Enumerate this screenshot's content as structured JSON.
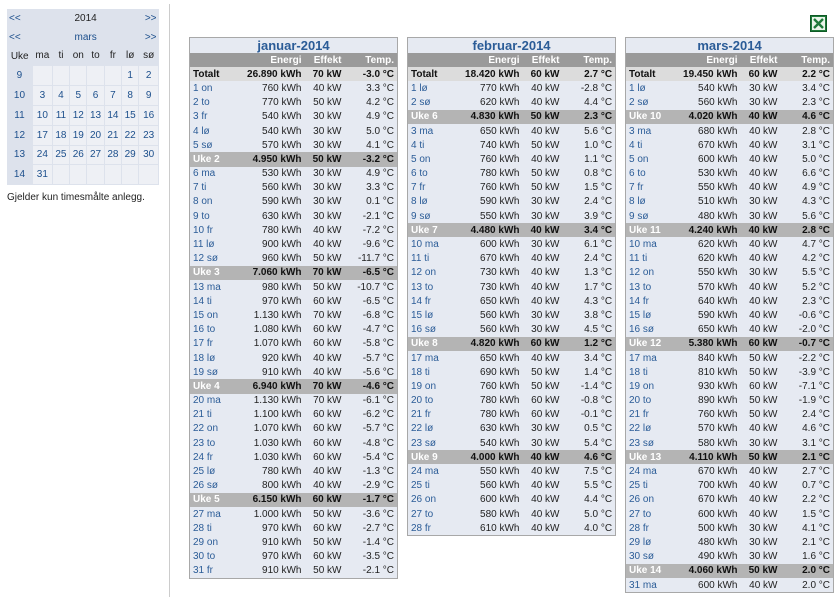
{
  "calendar": {
    "prev_year": "<<",
    "year": "2014",
    "next_year": ">>",
    "prev_month": "<<",
    "month": "mars",
    "next_month": ">>",
    "headers": [
      "Uke",
      "ma",
      "ti",
      "on",
      "to",
      "fr",
      "lø",
      "sø"
    ],
    "weeks": [
      {
        "week": "9",
        "days": [
          null,
          null,
          null,
          null,
          null,
          "1",
          "2"
        ]
      },
      {
        "week": "10",
        "days": [
          "3",
          "4",
          "5",
          "6",
          "7",
          "8",
          "9"
        ]
      },
      {
        "week": "11",
        "days": [
          "10",
          "11",
          "12",
          "13",
          "14",
          "15",
          "16"
        ]
      },
      {
        "week": "12",
        "days": [
          "17",
          "18",
          "19",
          "20",
          "21",
          "22",
          "23"
        ]
      },
      {
        "week": "13",
        "days": [
          "24",
          "25",
          "26",
          "27",
          "28",
          "29",
          "30"
        ]
      },
      {
        "week": "14",
        "days": [
          "31",
          null,
          null,
          null,
          null,
          null,
          null
        ]
      }
    ]
  },
  "note": "Gjelder kun timesmålte anlegg.",
  "columns": [
    "Energi",
    "Effekt",
    "Temp."
  ],
  "months": [
    {
      "title": "januar-2014",
      "total": [
        "Totalt",
        "26.890 kWh",
        "70 kW",
        "-3.0 °C"
      ],
      "sections": [
        {
          "days": [
            [
              "1 on",
              "760 kWh",
              "40 kW",
              "3.3 °C"
            ],
            [
              "2 to",
              "770 kWh",
              "50 kW",
              "4.2 °C"
            ],
            [
              "3 fr",
              "540 kWh",
              "30 kW",
              "4.9 °C"
            ],
            [
              "4 lø",
              "540 kWh",
              "30 kW",
              "5.0 °C"
            ],
            [
              "5 sø",
              "570 kWh",
              "30 kW",
              "4.1 °C"
            ]
          ]
        },
        {
          "week": [
            "Uke 2",
            "4.950 kWh",
            "50 kW",
            "-3.2 °C"
          ],
          "days": [
            [
              "6 ma",
              "530 kWh",
              "30 kW",
              "4.9 °C"
            ],
            [
              "7 ti",
              "560 kWh",
              "30 kW",
              "3.3 °C"
            ],
            [
              "8 on",
              "590 kWh",
              "30 kW",
              "0.1 °C"
            ],
            [
              "9 to",
              "630 kWh",
              "30 kW",
              "-2.1 °C"
            ],
            [
              "10 fr",
              "780 kWh",
              "40 kW",
              "-7.2 °C"
            ],
            [
              "11 lø",
              "900 kWh",
              "40 kW",
              "-9.6 °C"
            ],
            [
              "12 sø",
              "960 kWh",
              "50 kW",
              "-11.7 °C"
            ]
          ]
        },
        {
          "week": [
            "Uke 3",
            "7.060 kWh",
            "70 kW",
            "-6.5 °C"
          ],
          "days": [
            [
              "13 ma",
              "980 kWh",
              "50 kW",
              "-10.7 °C"
            ],
            [
              "14 ti",
              "970 kWh",
              "60 kW",
              "-6.5 °C"
            ],
            [
              "15 on",
              "1.130 kWh",
              "70 kW",
              "-6.8 °C"
            ],
            [
              "16 to",
              "1.080 kWh",
              "60 kW",
              "-4.7 °C"
            ],
            [
              "17 fr",
              "1.070 kWh",
              "60 kW",
              "-5.8 °C"
            ],
            [
              "18 lø",
              "920 kWh",
              "40 kW",
              "-5.7 °C"
            ],
            [
              "19 sø",
              "910 kWh",
              "40 kW",
              "-5.6 °C"
            ]
          ]
        },
        {
          "week": [
            "Uke 4",
            "6.940 kWh",
            "70 kW",
            "-4.6 °C"
          ],
          "days": [
            [
              "20 ma",
              "1.130 kWh",
              "70 kW",
              "-6.1 °C"
            ],
            [
              "21 ti",
              "1.100 kWh",
              "60 kW",
              "-6.2 °C"
            ],
            [
              "22 on",
              "1.070 kWh",
              "60 kW",
              "-5.7 °C"
            ],
            [
              "23 to",
              "1.030 kWh",
              "60 kW",
              "-4.8 °C"
            ],
            [
              "24 fr",
              "1.030 kWh",
              "60 kW",
              "-5.4 °C"
            ],
            [
              "25 lø",
              "780 kWh",
              "40 kW",
              "-1.3 °C"
            ],
            [
              "26 sø",
              "800 kWh",
              "40 kW",
              "-2.9 °C"
            ]
          ]
        },
        {
          "week": [
            "Uke 5",
            "6.150 kWh",
            "60 kW",
            "-1.7 °C"
          ],
          "days": [
            [
              "27 ma",
              "1.000 kWh",
              "50 kW",
              "-3.6 °C"
            ],
            [
              "28 ti",
              "970 kWh",
              "60 kW",
              "-2.7 °C"
            ],
            [
              "29 on",
              "910 kWh",
              "50 kW",
              "-1.4 °C"
            ],
            [
              "30 to",
              "970 kWh",
              "60 kW",
              "-3.5 °C"
            ],
            [
              "31 fr",
              "910 kWh",
              "50 kW",
              "-2.1 °C"
            ]
          ]
        }
      ]
    },
    {
      "title": "februar-2014",
      "total": [
        "Totalt",
        "18.420 kWh",
        "60 kW",
        "2.7 °C"
      ],
      "sections": [
        {
          "days": [
            [
              "1 lø",
              "770 kWh",
              "40 kW",
              "-2.8 °C"
            ],
            [
              "2 sø",
              "620 kWh",
              "40 kW",
              "4.4 °C"
            ]
          ]
        },
        {
          "week": [
            "Uke 6",
            "4.830 kWh",
            "50 kW",
            "2.3 °C"
          ],
          "days": [
            [
              "3 ma",
              "650 kWh",
              "40 kW",
              "5.6 °C"
            ],
            [
              "4 ti",
              "740 kWh",
              "50 kW",
              "1.0 °C"
            ],
            [
              "5 on",
              "760 kWh",
              "40 kW",
              "1.1 °C"
            ],
            [
              "6 to",
              "780 kWh",
              "50 kW",
              "0.8 °C"
            ],
            [
              "7 fr",
              "760 kWh",
              "50 kW",
              "1.5 °C"
            ],
            [
              "8 lø",
              "590 kWh",
              "30 kW",
              "2.4 °C"
            ],
            [
              "9 sø",
              "550 kWh",
              "30 kW",
              "3.9 °C"
            ]
          ]
        },
        {
          "week": [
            "Uke 7",
            "4.480 kWh",
            "40 kW",
            "3.4 °C"
          ],
          "days": [
            [
              "10 ma",
              "600 kWh",
              "30 kW",
              "6.1 °C"
            ],
            [
              "11 ti",
              "670 kWh",
              "40 kW",
              "2.4 °C"
            ],
            [
              "12 on",
              "730 kWh",
              "40 kW",
              "1.3 °C"
            ],
            [
              "13 to",
              "730 kWh",
              "40 kW",
              "1.7 °C"
            ],
            [
              "14 fr",
              "650 kWh",
              "40 kW",
              "4.3 °C"
            ],
            [
              "15 lø",
              "560 kWh",
              "30 kW",
              "3.8 °C"
            ],
            [
              "16 sø",
              "560 kWh",
              "30 kW",
              "4.5 °C"
            ]
          ]
        },
        {
          "week": [
            "Uke 8",
            "4.820 kWh",
            "60 kW",
            "1.2 °C"
          ],
          "days": [
            [
              "17 ma",
              "650 kWh",
              "40 kW",
              "3.4 °C"
            ],
            [
              "18 ti",
              "690 kWh",
              "50 kW",
              "1.4 °C"
            ],
            [
              "19 on",
              "760 kWh",
              "50 kW",
              "-1.4 °C"
            ],
            [
              "20 to",
              "780 kWh",
              "60 kW",
              "-0.8 °C"
            ],
            [
              "21 fr",
              "780 kWh",
              "60 kW",
              "-0.1 °C"
            ],
            [
              "22 lø",
              "630 kWh",
              "30 kW",
              "0.5 °C"
            ],
            [
              "23 sø",
              "540 kWh",
              "30 kW",
              "5.4 °C"
            ]
          ]
        },
        {
          "week": [
            "Uke 9",
            "4.000 kWh",
            "40 kW",
            "4.6 °C"
          ],
          "days": [
            [
              "24 ma",
              "550 kWh",
              "40 kW",
              "7.5 °C"
            ],
            [
              "25 ti",
              "560 kWh",
              "40 kW",
              "5.5 °C"
            ],
            [
              "26 on",
              "600 kWh",
              "40 kW",
              "4.4 °C"
            ],
            [
              "27 to",
              "580 kWh",
              "40 kW",
              "5.0 °C"
            ],
            [
              "28 fr",
              "610 kWh",
              "40 kW",
              "4.0 °C"
            ]
          ]
        }
      ]
    },
    {
      "title": "mars-2014",
      "total": [
        "Totalt",
        "19.450 kWh",
        "60 kW",
        "2.2 °C"
      ],
      "sections": [
        {
          "days": [
            [
              "1 lø",
              "540 kWh",
              "30 kW",
              "3.4 °C"
            ],
            [
              "2 sø",
              "560 kWh",
              "30 kW",
              "2.3 °C"
            ]
          ]
        },
        {
          "week": [
            "Uke 10",
            "4.020 kWh",
            "40 kW",
            "4.6 °C"
          ],
          "days": [
            [
              "3 ma",
              "680 kWh",
              "40 kW",
              "2.8 °C"
            ],
            [
              "4 ti",
              "670 kWh",
              "40 kW",
              "3.1 °C"
            ],
            [
              "5 on",
              "600 kWh",
              "40 kW",
              "5.0 °C"
            ],
            [
              "6 to",
              "530 kWh",
              "40 kW",
              "6.6 °C"
            ],
            [
              "7 fr",
              "550 kWh",
              "40 kW",
              "4.9 °C"
            ],
            [
              "8 lø",
              "510 kWh",
              "30 kW",
              "4.3 °C"
            ],
            [
              "9 sø",
              "480 kWh",
              "30 kW",
              "5.6 °C"
            ]
          ]
        },
        {
          "week": [
            "Uke 11",
            "4.240 kWh",
            "40 kW",
            "2.8 °C"
          ],
          "days": [
            [
              "10 ma",
              "620 kWh",
              "40 kW",
              "4.7 °C"
            ],
            [
              "11 ti",
              "620 kWh",
              "40 kW",
              "4.2 °C"
            ],
            [
              "12 on",
              "550 kWh",
              "30 kW",
              "5.5 °C"
            ],
            [
              "13 to",
              "570 kWh",
              "40 kW",
              "5.2 °C"
            ],
            [
              "14 fr",
              "640 kWh",
              "40 kW",
              "2.3 °C"
            ],
            [
              "15 lø",
              "590 kWh",
              "40 kW",
              "-0.6 °C"
            ],
            [
              "16 sø",
              "650 kWh",
              "40 kW",
              "-2.0 °C"
            ]
          ]
        },
        {
          "week": [
            "Uke 12",
            "5.380 kWh",
            "60 kW",
            "-0.7 °C"
          ],
          "days": [
            [
              "17 ma",
              "840 kWh",
              "50 kW",
              "-2.2 °C"
            ],
            [
              "18 ti",
              "810 kWh",
              "50 kW",
              "-3.9 °C"
            ],
            [
              "19 on",
              "930 kWh",
              "60 kW",
              "-7.1 °C"
            ],
            [
              "20 to",
              "890 kWh",
              "50 kW",
              "-1.9 °C"
            ],
            [
              "21 fr",
              "760 kWh",
              "50 kW",
              "2.4 °C"
            ],
            [
              "22 lø",
              "570 kWh",
              "40 kW",
              "4.6 °C"
            ],
            [
              "23 sø",
              "580 kWh",
              "30 kW",
              "3.1 °C"
            ]
          ]
        },
        {
          "week": [
            "Uke 13",
            "4.110 kWh",
            "50 kW",
            "2.1 °C"
          ],
          "days": [
            [
              "24 ma",
              "670 kWh",
              "40 kW",
              "2.7 °C"
            ],
            [
              "25 ti",
              "700 kWh",
              "40 kW",
              "0.7 °C"
            ],
            [
              "26 on",
              "670 kWh",
              "40 kW",
              "2.2 °C"
            ],
            [
              "27 to",
              "600 kWh",
              "40 kW",
              "1.5 °C"
            ],
            [
              "28 fr",
              "500 kWh",
              "30 kW",
              "4.1 °C"
            ],
            [
              "29 lø",
              "480 kWh",
              "30 kW",
              "2.1 °C"
            ],
            [
              "30 sø",
              "490 kWh",
              "30 kW",
              "1.6 °C"
            ]
          ]
        },
        {
          "week": [
            "Uke 14",
            "4.060 kWh",
            "50 kW",
            "2.0 °C"
          ],
          "days": [
            [
              "31 ma",
              "600 kWh",
              "40 kW",
              "2.0 °C"
            ]
          ]
        }
      ]
    }
  ]
}
